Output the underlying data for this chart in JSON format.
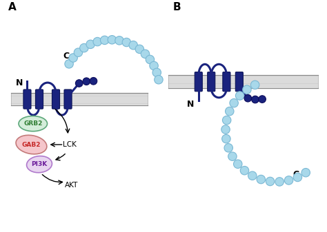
{
  "panel_A_label": "A",
  "panel_B_label": "B",
  "protein_color": "#1a237e",
  "bead_color": "#a8d8ea",
  "bead_edge_color": "#7ab8d4",
  "dark_bead_color": "#1a237e",
  "dark_bead_edge": "#0d0d5c",
  "grb2_color": "#d4edda",
  "grb2_edge": "#5da87a",
  "gab2_color": "#f5c6cb",
  "gab2_edge": "#c47a7a",
  "pi3k_color": "#e8d5f0",
  "pi3k_edge": "#b07acc",
  "arrow_color": "#222222",
  "grb2_text": "GRB2",
  "gab2_text": "GAB2",
  "pi3k_text": "PI3K",
  "lck_text": "LCK",
  "akt_text": "AKT",
  "n_label_A": "N",
  "c_label_A": "C",
  "c_label_B": "C",
  "n_label_B": "N",
  "mem_fill": "#e8e8e8",
  "mem_line": "#aaaaaa"
}
